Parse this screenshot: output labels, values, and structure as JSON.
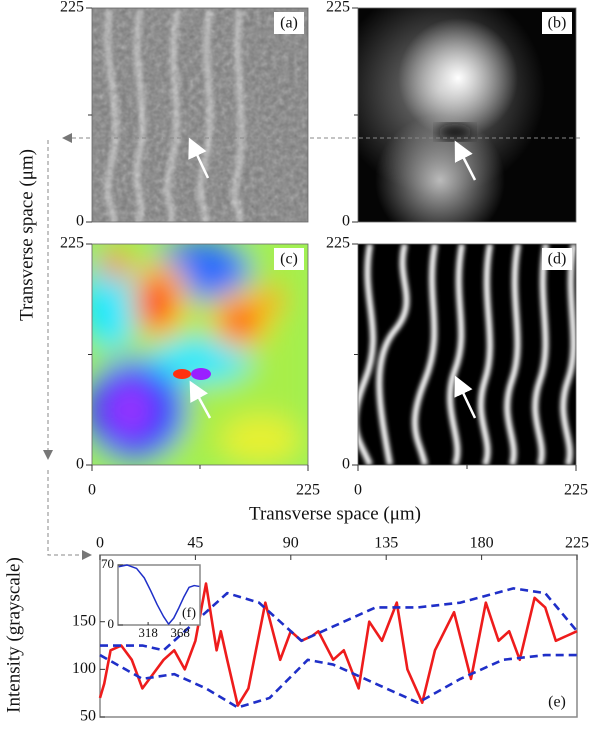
{
  "image_panels": [
    {
      "label": "(a)",
      "yticks": [
        0,
        225
      ]
    },
    {
      "label": "(b)",
      "yticks": [
        0,
        225
      ]
    },
    {
      "label": "(c)",
      "yticks": [
        0,
        225
      ],
      "xticks": [
        0,
        225
      ]
    },
    {
      "label": "(d)",
      "yticks": [
        0,
        225
      ],
      "xticks": [
        0,
        225
      ]
    }
  ],
  "y_axis_label": "Transverse space (μm)",
  "x_axis_label": "Transverse space (μm)",
  "chart_data": [
    {
      "type": "line",
      "panel_label": "(e)",
      "y_label": "Intensity (grayscale)",
      "xlim": [
        0,
        225
      ],
      "xticks": [
        0,
        45,
        90,
        135,
        180,
        225
      ],
      "ylim": [
        50,
        220
      ],
      "yticks": [
        50,
        100,
        150
      ],
      "series": [
        {
          "color": "#ee1c1c",
          "dashed": false,
          "x": [
            0,
            2,
            5,
            10,
            15,
            20,
            25,
            30,
            35,
            40,
            45,
            50,
            55,
            57,
            60,
            65,
            70,
            78,
            85,
            90,
            95,
            100,
            103,
            110,
            115,
            122,
            127,
            133,
            140,
            145,
            152,
            158,
            167,
            175,
            182,
            188,
            193,
            198,
            205,
            210,
            215,
            220,
            225
          ],
          "values": [
            70,
            85,
            120,
            125,
            110,
            80,
            95,
            110,
            120,
            100,
            130,
            190,
            120,
            140,
            110,
            62,
            80,
            170,
            110,
            140,
            130,
            135,
            140,
            110,
            120,
            80,
            150,
            130,
            170,
            100,
            65,
            120,
            160,
            90,
            170,
            130,
            140,
            110,
            175,
            165,
            130,
            135,
            140
          ]
        },
        {
          "color": "#1f2fc8",
          "dashed": true,
          "x": [
            0,
            20,
            30,
            45,
            60,
            75,
            95,
            110,
            130,
            150,
            170,
            195,
            210,
            225
          ],
          "values": [
            125,
            125,
            120,
            150,
            180,
            170,
            130,
            145,
            165,
            165,
            170,
            185,
            180,
            140
          ]
        },
        {
          "color": "#1f2fc8",
          "dashed": true,
          "x": [
            0,
            20,
            35,
            50,
            65,
            80,
            98,
            110,
            130,
            150,
            170,
            190,
            210,
            225
          ],
          "values": [
            115,
            90,
            95,
            80,
            60,
            70,
            110,
            105,
            85,
            65,
            90,
            110,
            115,
            115
          ]
        }
      ]
    },
    {
      "type": "line",
      "panel_label": "(f)",
      "xlim": [
        271,
        399
      ],
      "xticks": [
        318,
        368
      ],
      "ylim": [
        0,
        70
      ],
      "yticks": [
        0,
        70
      ],
      "series": [
        {
          "color": "#1f2fc8",
          "dashed": false,
          "x": [
            272,
            285,
            300,
            312,
            322,
            332,
            342,
            350,
            358,
            366,
            374,
            382,
            390,
            398
          ],
          "values": [
            68,
            70,
            66,
            55,
            40,
            24,
            10,
            1,
            8,
            20,
            33,
            44,
            46,
            45
          ]
        }
      ]
    }
  ]
}
